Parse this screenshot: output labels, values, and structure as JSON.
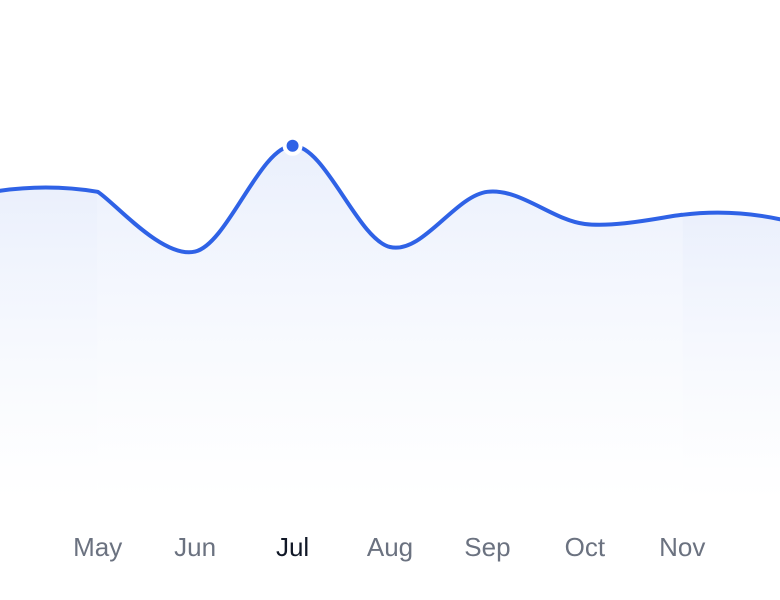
{
  "chart_data": {
    "type": "area",
    "categories": [
      "May",
      "Jun",
      "Jul",
      "Aug",
      "Sep",
      "Oct",
      "Nov"
    ],
    "values": [
      67,
      54,
      77,
      55,
      67,
      60,
      62
    ],
    "color": "#2f62e6",
    "ylim": [
      0,
      100
    ],
    "active": 2
  }
}
